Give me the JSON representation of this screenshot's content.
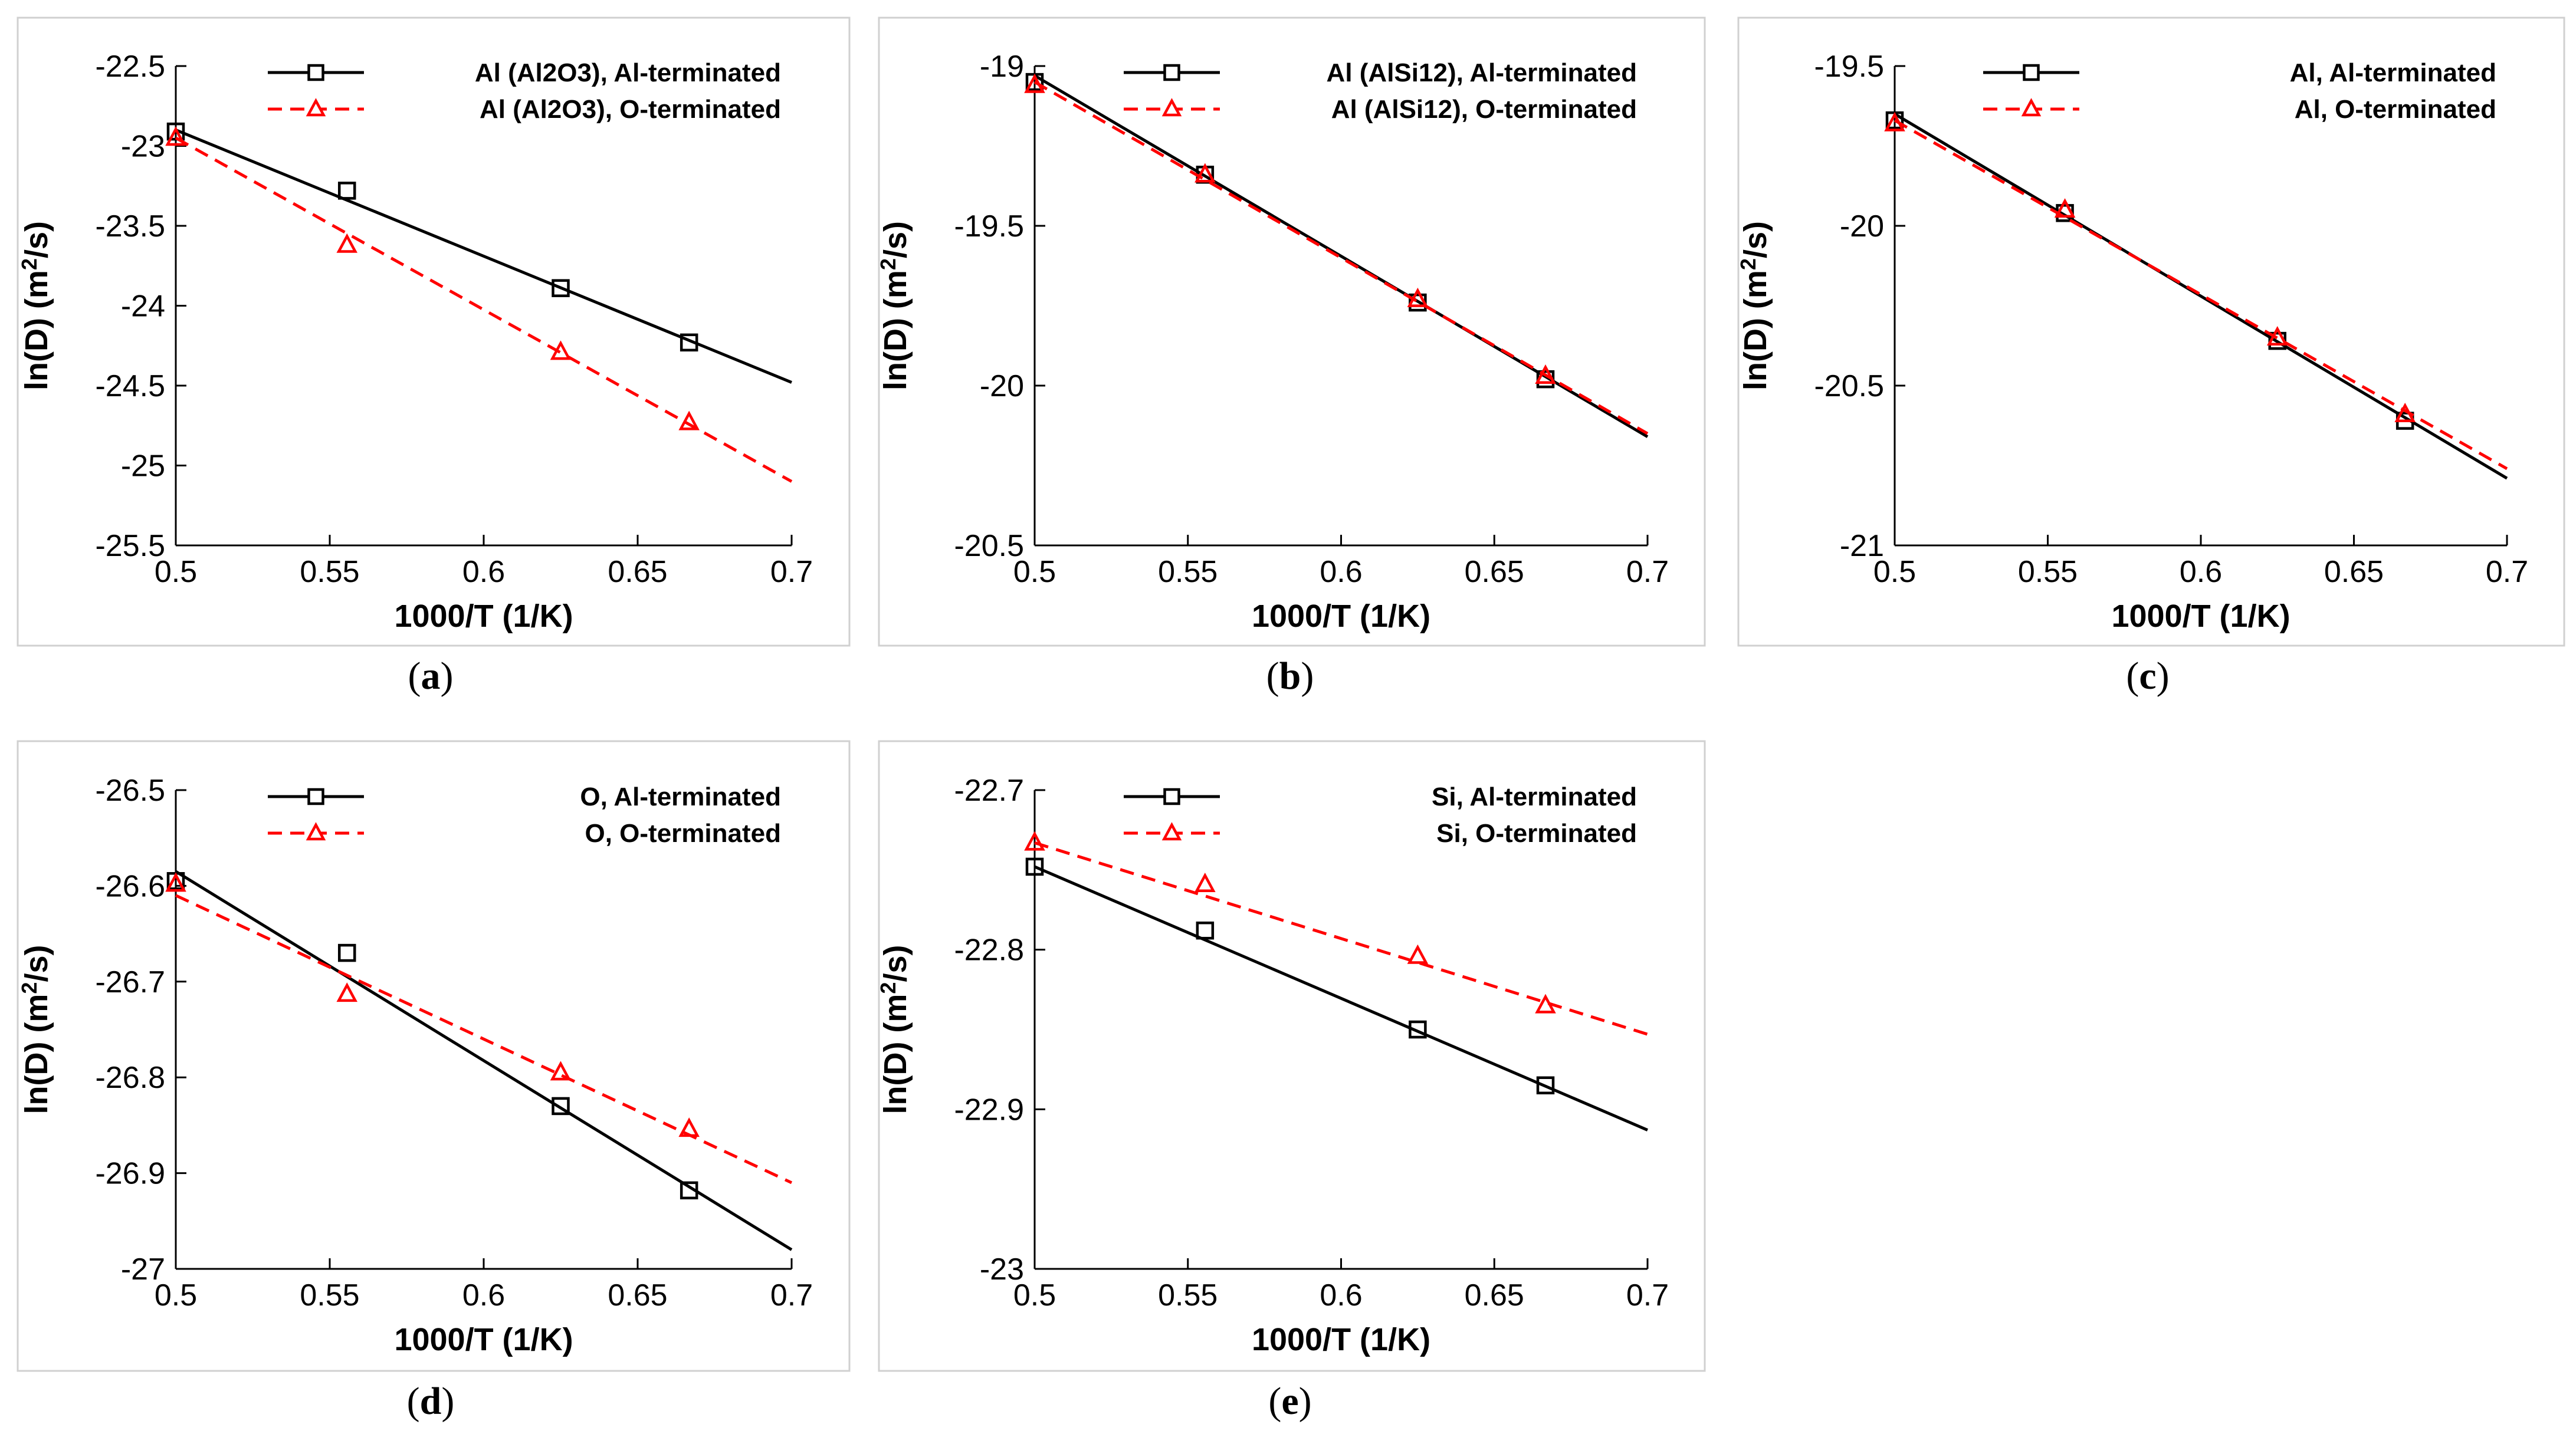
{
  "colors": {
    "series_ai": "#000000",
    "series_o": "#ff0000"
  },
  "chart_data": [
    {
      "id": "a",
      "type": "line",
      "panel_label": "a",
      "xlabel": "1000/T (1/K)",
      "ylabel": "ln(D) (m2/s)",
      "xlim": [
        0.5,
        0.7
      ],
      "ylim": [
        -25.5,
        -22.5
      ],
      "x_ticks": [
        0.5,
        0.55,
        0.6,
        0.65,
        0.7
      ],
      "x_tick_labels": [
        "0.5",
        "0.55",
        "0.6",
        "0.65",
        "0.7"
      ],
      "y_ticks": [
        -22.5,
        -23,
        -23.5,
        -24,
        -24.5,
        -25,
        -25.5
      ],
      "y_tick_labels": [
        "-22.5",
        "-23",
        "-23.5",
        "-24",
        "-24.5",
        "-25",
        "-25.5"
      ],
      "series": [
        {
          "name": "Al (Al2O3), Al-terminated",
          "marker": "square",
          "line": "solid",
          "color": "#000000",
          "x": [
            0.5,
            0.5556,
            0.625,
            0.6667
          ],
          "values": [
            -22.91,
            -23.28,
            -23.89,
            -24.23
          ],
          "fit": [
            -22.9,
            -24.48
          ]
        },
        {
          "name": "Al (Al2O3), O-terminated",
          "marker": "triangle",
          "line": "dashed",
          "color": "#ff0000",
          "x": [
            0.5,
            0.5556,
            0.625,
            0.6667
          ],
          "values": [
            -22.95,
            -23.62,
            -24.29,
            -24.73
          ],
          "fit": [
            -22.95,
            -25.1
          ]
        }
      ]
    },
    {
      "id": "b",
      "type": "line",
      "panel_label": "b",
      "xlabel": "1000/T (1/K)",
      "ylabel": "ln(D) (m2/s)",
      "xlim": [
        0.5,
        0.7
      ],
      "ylim": [
        -20.5,
        -19
      ],
      "x_ticks": [
        0.5,
        0.55,
        0.6,
        0.65,
        0.7
      ],
      "x_tick_labels": [
        "0.5",
        "0.55",
        "0.6",
        "0.65",
        "0.7"
      ],
      "y_ticks": [
        -19,
        -19.5,
        -20,
        -20.5
      ],
      "y_tick_labels": [
        "-19",
        "-19.5",
        "-20",
        "-20.5"
      ],
      "series": [
        {
          "name": "Al (AlSi12), Al-terminated",
          "marker": "square",
          "line": "solid",
          "color": "#000000",
          "x": [
            0.5,
            0.5556,
            0.625,
            0.6667
          ],
          "values": [
            -19.05,
            -19.34,
            -19.74,
            -19.98
          ],
          "fit": [
            -19.03,
            -20.16
          ]
        },
        {
          "name": "Al (AlSi12), O-terminated",
          "marker": "triangle",
          "line": "dashed",
          "color": "#ff0000",
          "x": [
            0.5,
            0.5556,
            0.625,
            0.6667
          ],
          "values": [
            -19.06,
            -19.34,
            -19.73,
            -19.97
          ],
          "fit": [
            -19.05,
            -20.15
          ]
        }
      ]
    },
    {
      "id": "c",
      "type": "line",
      "panel_label": "c",
      "xlabel": "1000/T (1/K)",
      "ylabel": "ln(D) (m2/s)",
      "xlim": [
        0.5,
        0.7
      ],
      "ylim": [
        -21,
        -19.5
      ],
      "x_ticks": [
        0.5,
        0.55,
        0.6,
        0.65,
        0.7
      ],
      "x_tick_labels": [
        "0.5",
        "0.55",
        "0.6",
        "0.65",
        "0.7"
      ],
      "y_ticks": [
        -19.5,
        -20,
        -20.5,
        -21
      ],
      "y_tick_labels": [
        "-19.5",
        "-20",
        "-20.5",
        "-21"
      ],
      "series": [
        {
          "name": "Al, Al-terminated",
          "marker": "square",
          "line": "solid",
          "color": "#000000",
          "x": [
            0.5,
            0.5556,
            0.625,
            0.6667
          ],
          "values": [
            -19.67,
            -19.96,
            -20.36,
            -20.61
          ],
          "fit": [
            -19.65,
            -20.79
          ]
        },
        {
          "name": "Al, O-terminated",
          "marker": "triangle",
          "line": "dashed",
          "color": "#ff0000",
          "x": [
            0.5,
            0.5556,
            0.625,
            0.6667
          ],
          "values": [
            -19.68,
            -19.95,
            -20.35,
            -20.59
          ],
          "fit": [
            -19.67,
            -20.76
          ]
        }
      ]
    },
    {
      "id": "d",
      "type": "line",
      "panel_label": "d",
      "xlabel": "1000/T (1/K)",
      "ylabel": "ln(D) (m2/s)",
      "xlim": [
        0.5,
        0.7
      ],
      "ylim": [
        -27,
        -26.5
      ],
      "x_ticks": [
        0.5,
        0.55,
        0.6,
        0.65,
        0.7
      ],
      "x_tick_labels": [
        "0.5",
        "0.55",
        "0.6",
        "0.65",
        "0.7"
      ],
      "y_ticks": [
        -26.5,
        -26.6,
        -26.7,
        -26.8,
        -26.9,
        -27
      ],
      "y_tick_labels": [
        "-26.5",
        "-26.6",
        "-26.7",
        "-26.8",
        "-26.9",
        "-27"
      ],
      "series": [
        {
          "name": "O, Al-terminated",
          "marker": "square",
          "line": "solid",
          "color": "#000000",
          "x": [
            0.5,
            0.5556,
            0.625,
            0.6667
          ],
          "values": [
            -26.595,
            -26.67,
            -26.83,
            -26.918
          ],
          "fit": [
            -26.585,
            -26.98
          ]
        },
        {
          "name": "O, O-terminated",
          "marker": "triangle",
          "line": "dashed",
          "color": "#ff0000",
          "x": [
            0.5,
            0.5556,
            0.625,
            0.6667
          ],
          "values": [
            -26.598,
            -26.713,
            -26.795,
            -26.854
          ],
          "fit": [
            -26.61,
            -26.91
          ]
        }
      ]
    },
    {
      "id": "e",
      "type": "line",
      "panel_label": "e",
      "xlabel": "1000/T (1/K)",
      "ylabel": "ln(D) (m2/s)",
      "xlim": [
        0.5,
        0.7
      ],
      "ylim": [
        -23,
        -22.7
      ],
      "x_ticks": [
        0.5,
        0.55,
        0.6,
        0.65,
        0.7
      ],
      "x_tick_labels": [
        "0.5",
        "0.55",
        "0.6",
        "0.65",
        "0.7"
      ],
      "y_ticks": [
        -22.7,
        -22.8,
        -22.9,
        -23
      ],
      "y_tick_labels": [
        "-22.7",
        "-22.8",
        "-22.9",
        "-23"
      ],
      "series": [
        {
          "name": "Si, Al-terminated",
          "marker": "square",
          "line": "solid",
          "color": "#000000",
          "x": [
            0.5,
            0.5556,
            0.625,
            0.6667
          ],
          "values": [
            -22.748,
            -22.788,
            -22.85,
            -22.885
          ],
          "fit": [
            -22.748,
            -22.913
          ]
        },
        {
          "name": "Si, O-terminated",
          "marker": "triangle",
          "line": "dashed",
          "color": "#ff0000",
          "x": [
            0.5,
            0.5556,
            0.625,
            0.6667
          ],
          "values": [
            -22.733,
            -22.759,
            -22.804,
            -22.835
          ],
          "fit": [
            -22.733,
            -22.853
          ]
        }
      ]
    }
  ]
}
